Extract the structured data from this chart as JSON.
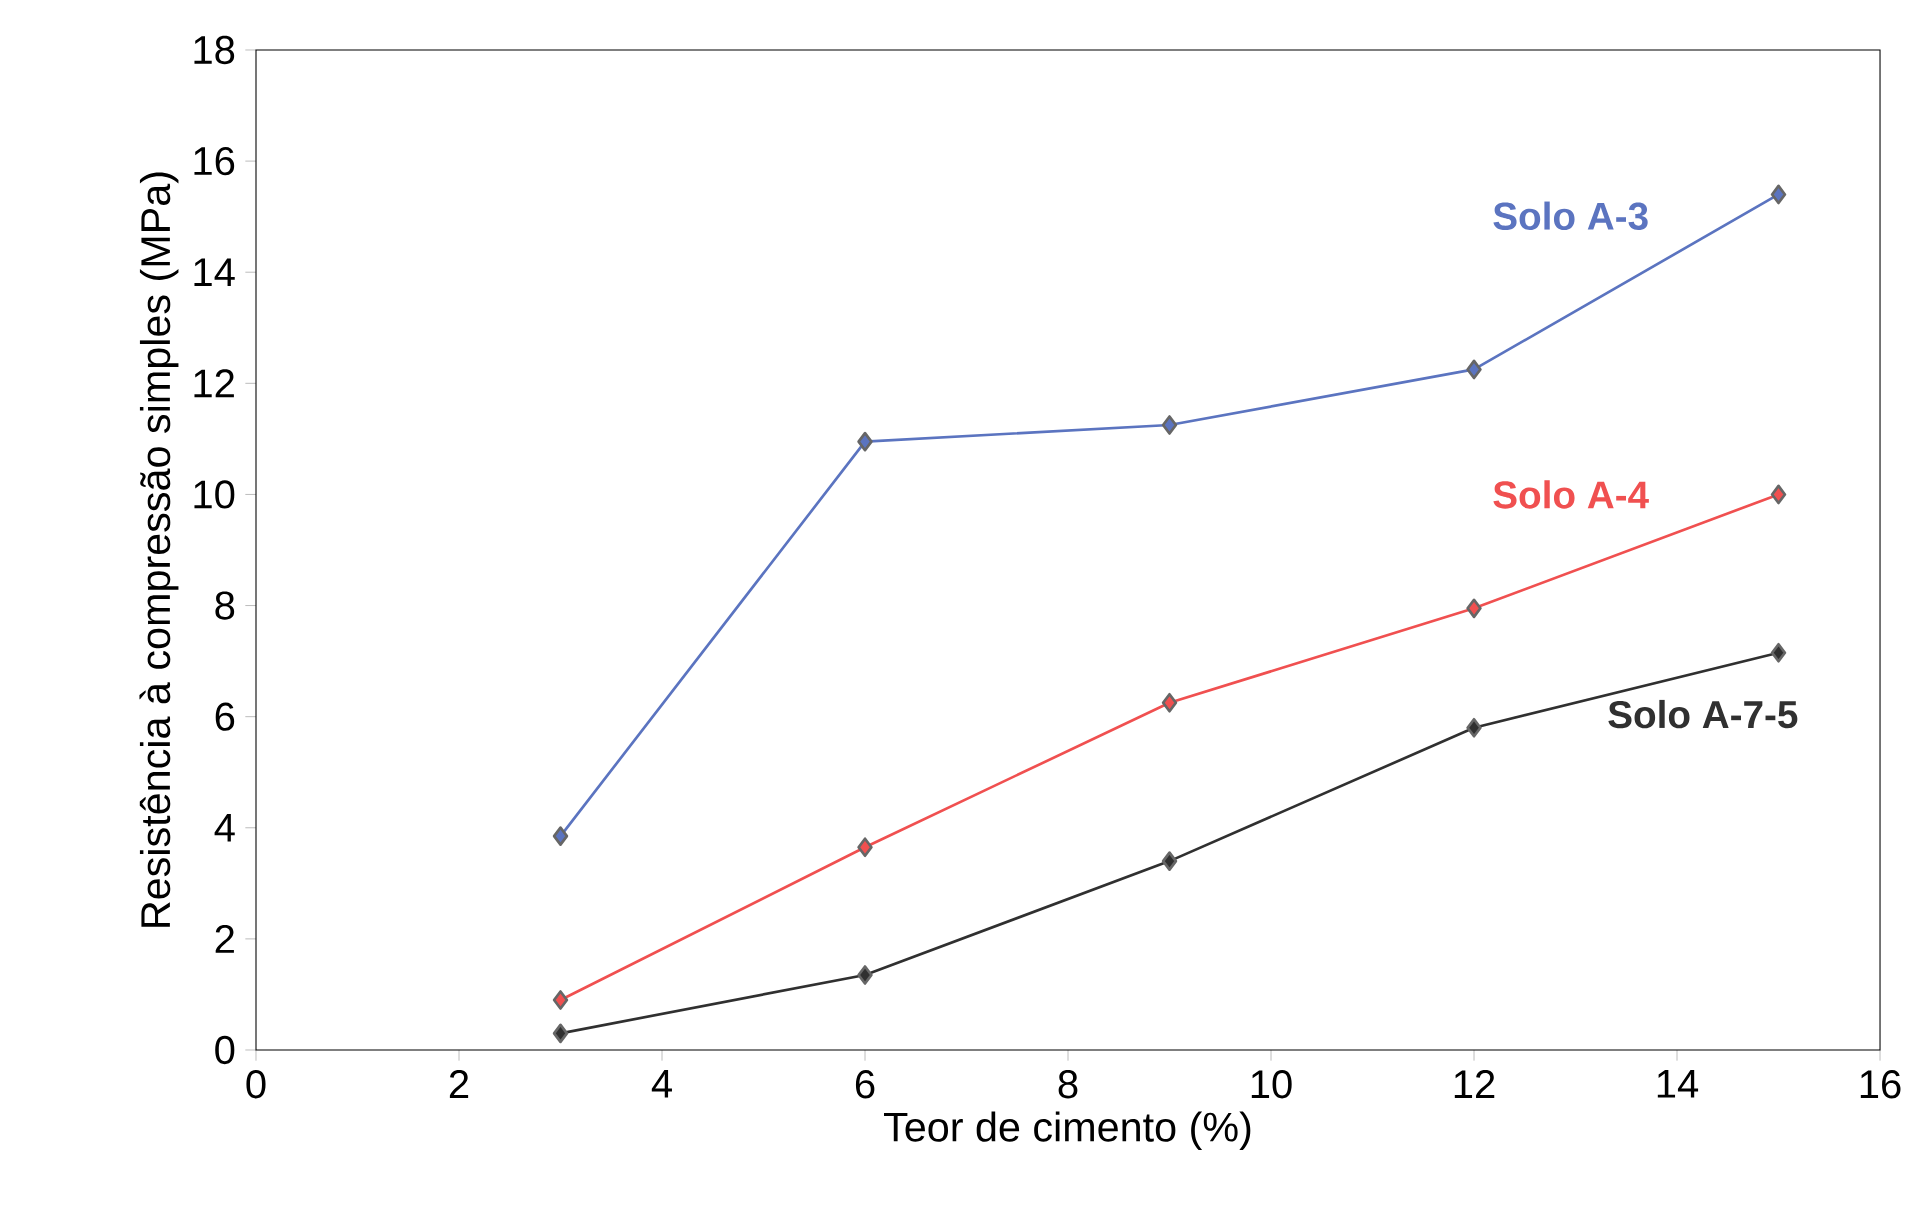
{
  "chart_data": {
    "type": "line",
    "xlabel": "Teor de cimento (%)",
    "ylabel": "Resistência à compressão simples (MPa)",
    "x": [
      3,
      6,
      9,
      12,
      15
    ],
    "series": [
      {
        "name": "Solo A-3",
        "color": "#5b74c0",
        "values": [
          3.85,
          10.95,
          11.25,
          12.25,
          15.4
        ]
      },
      {
        "name": "Solo A-4",
        "color": "#f05050",
        "values": [
          0.9,
          3.65,
          6.25,
          7.95,
          10.0
        ]
      },
      {
        "name": "Solo A-7-5",
        "color": "#303030",
        "values": [
          0.3,
          1.35,
          3.4,
          5.8,
          7.15
        ]
      }
    ],
    "xlim": [
      0,
      16
    ],
    "ylim": [
      0,
      18
    ],
    "xticks": [
      0,
      2,
      4,
      6,
      8,
      10,
      12,
      14,
      16
    ],
    "yticks": [
      0,
      2,
      4,
      6,
      8,
      10,
      12,
      14,
      16,
      18
    ],
    "marker": "diamond",
    "line_style": "solid",
    "grid": false
  }
}
